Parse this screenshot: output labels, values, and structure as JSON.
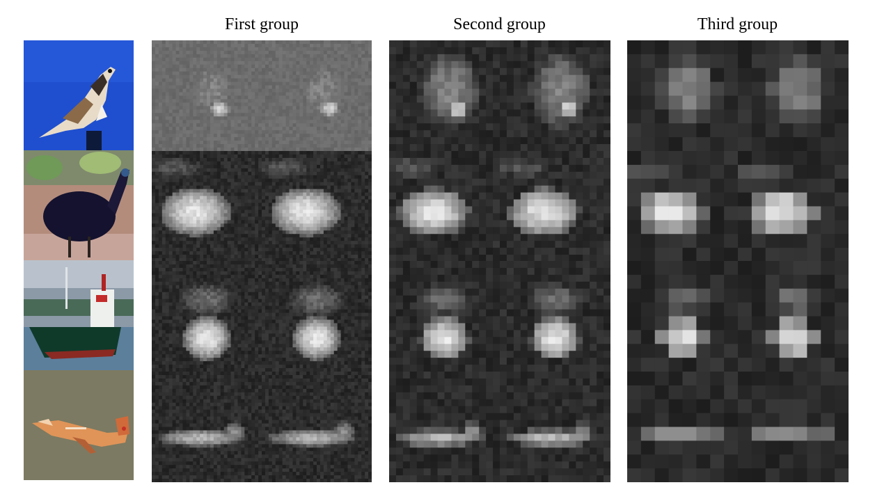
{
  "headers": [
    "First group",
    "Second group",
    "Third group"
  ],
  "rows": [
    {
      "subject": "bird-on-perch",
      "input_bg": "#1f4fcf"
    },
    {
      "subject": "dark-bird-on-ground",
      "input_bg": "#b48c7c"
    },
    {
      "subject": "ship-on-water",
      "input_bg": "#6c7c8c"
    },
    {
      "subject": "airplane",
      "input_bg": "#7c7a62"
    }
  ],
  "colors": {
    "background": "#ffffff",
    "feature_dark": "#111111",
    "feature_light": "#f2f2f2"
  }
}
